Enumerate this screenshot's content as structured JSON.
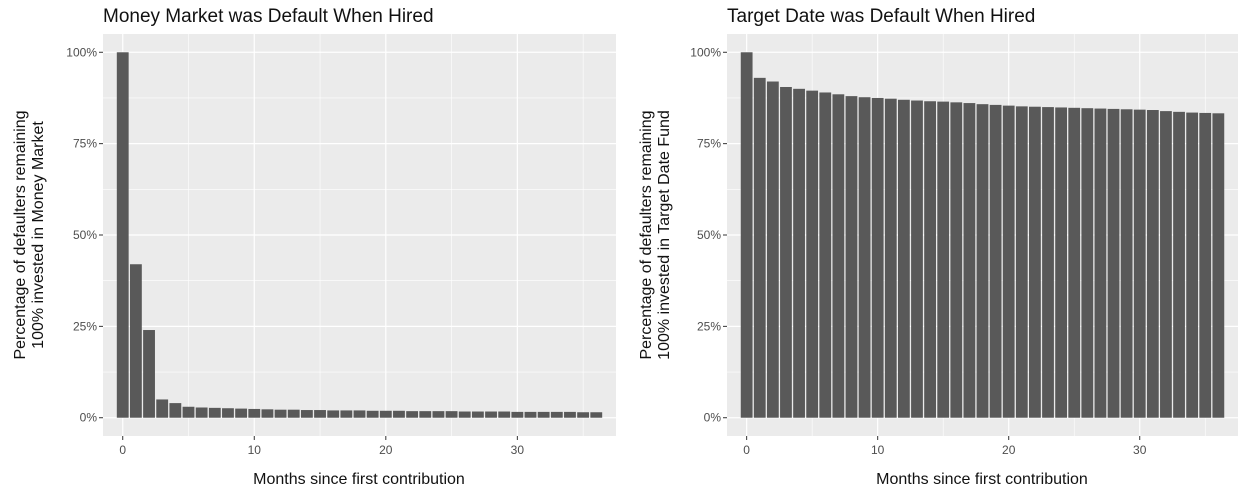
{
  "colors": {
    "panel_background": "#ebebeb",
    "grid_major": "#ffffff",
    "bar_fill": "#595959",
    "tick_text": "#4d4d4d"
  },
  "chart_data": [
    {
      "type": "bar",
      "title": "Money Market was Default When Hired",
      "xlabel": "Months since first contribution",
      "ylabel": [
        "Percentage of defaulters remaining",
        "100% invested in Money Market"
      ],
      "x": [
        0,
        1,
        2,
        3,
        4,
        5,
        6,
        7,
        8,
        9,
        10,
        11,
        12,
        13,
        14,
        15,
        16,
        17,
        18,
        19,
        20,
        21,
        22,
        23,
        24,
        25,
        26,
        27,
        28,
        29,
        30,
        31,
        32,
        33,
        34,
        35,
        36
      ],
      "values": [
        100,
        42,
        24,
        5,
        4,
        3,
        2.8,
        2.7,
        2.6,
        2.5,
        2.4,
        2.3,
        2.2,
        2.2,
        2.1,
        2.1,
        2.0,
        2.0,
        2.0,
        1.9,
        1.9,
        1.9,
        1.8,
        1.8,
        1.8,
        1.8,
        1.7,
        1.7,
        1.7,
        1.7,
        1.6,
        1.6,
        1.6,
        1.6,
        1.6,
        1.5,
        1.5
      ],
      "xlim": [
        -1.5,
        37.5
      ],
      "ylim": [
        -5,
        105
      ],
      "xticks": [
        0,
        10,
        20,
        30
      ],
      "xtick_labels": [
        "0",
        "10",
        "20",
        "30"
      ],
      "yticks": [
        0,
        25,
        50,
        75,
        100
      ],
      "ytick_labels": [
        "0%",
        "25%",
        "50%",
        "75%",
        "100%"
      ],
      "grid": true
    },
    {
      "type": "bar",
      "title": "Target Date was Default When Hired",
      "xlabel": "Months since first contribution",
      "ylabel": [
        "Percentage of defaulters remaining",
        "100% invested in Target Date Fund"
      ],
      "x": [
        0,
        1,
        2,
        3,
        4,
        5,
        6,
        7,
        8,
        9,
        10,
        11,
        12,
        13,
        14,
        15,
        16,
        17,
        18,
        19,
        20,
        21,
        22,
        23,
        24,
        25,
        26,
        27,
        28,
        29,
        30,
        31,
        32,
        33,
        34,
        35,
        36
      ],
      "values": [
        100,
        93,
        92,
        90.5,
        90,
        89.5,
        89,
        88.5,
        88,
        87.7,
        87.5,
        87.3,
        87,
        86.8,
        86.6,
        86.5,
        86.3,
        86.1,
        85.8,
        85.6,
        85.4,
        85.2,
        85.1,
        85.0,
        84.9,
        84.8,
        84.7,
        84.6,
        84.5,
        84.4,
        84.3,
        84.2,
        83.9,
        83.7,
        83.5,
        83.4,
        83.3
      ],
      "xlim": [
        -1.5,
        37.5
      ],
      "ylim": [
        -5,
        105
      ],
      "xticks": [
        0,
        10,
        20,
        30
      ],
      "xtick_labels": [
        "0",
        "10",
        "20",
        "30"
      ],
      "yticks": [
        0,
        25,
        50,
        75,
        100
      ],
      "ytick_labels": [
        "0%",
        "25%",
        "50%",
        "75%",
        "100%"
      ],
      "grid": true
    }
  ]
}
